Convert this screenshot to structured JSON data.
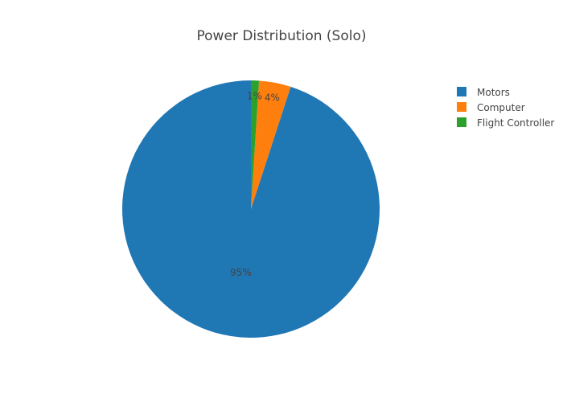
{
  "chart_data": {
    "type": "pie",
    "title": "Power Distribution (Solo)",
    "labels": [
      "Motors",
      "Computer",
      "Flight Controller"
    ],
    "values": [
      95,
      4,
      1
    ],
    "percent_labels": [
      "95%",
      "4%",
      "1%"
    ],
    "colors": [
      "#1f77b4",
      "#ff7f0e",
      "#2ca02c"
    ],
    "direction": "counterclockwise",
    "legend_position": "top-right"
  }
}
